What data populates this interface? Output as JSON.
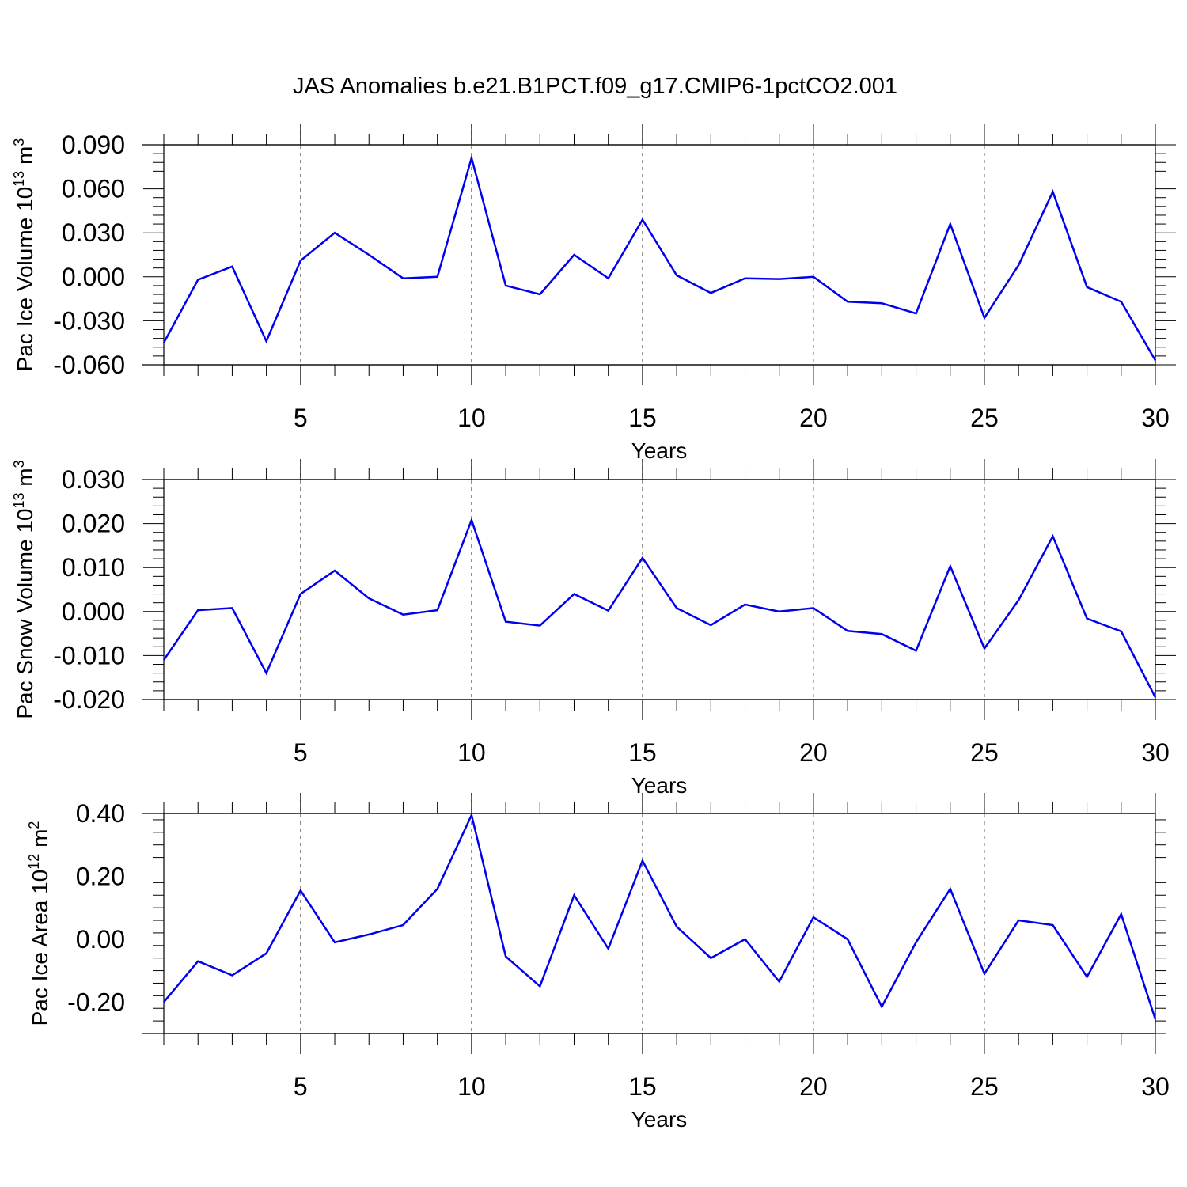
{
  "figure_title": "JAS Anomalies b.e21.B1PCT.f09_g17.CMIP6-1pctCO2.001",
  "colors": {
    "line": "#0000ee",
    "axis": "#000000",
    "grid": "#555555"
  },
  "chart_data": [
    {
      "type": "line",
      "title": "JAS Anomalies b.e21.B1PCT.f09_g17.CMIP6-1pctCO2.001",
      "xlabel": "Years",
      "ylabel": {
        "text": "Pac Ice Volume 10",
        "exponent": "13",
        "unit": "m",
        "unit_exponent": "3"
      },
      "xlim": [
        1,
        30
      ],
      "ylim": [
        -0.06,
        0.09
      ],
      "xticks": [
        5,
        10,
        15,
        20,
        25,
        30
      ],
      "xtick_labels": [
        "5",
        "10",
        "15",
        "20",
        "25",
        "30"
      ],
      "yticks": [
        0.09,
        0.06,
        0.03,
        0.0,
        -0.03,
        -0.06
      ],
      "ytick_labels": [
        "0.090",
        "0.060",
        "0.030",
        "0.000",
        "-0.030",
        "-0.060"
      ],
      "grid_x": [
        5,
        10,
        15,
        20,
        25
      ],
      "x": [
        1,
        2,
        3,
        4,
        5,
        6,
        7,
        8,
        9,
        10,
        11,
        12,
        13,
        14,
        15,
        16,
        17,
        18,
        19,
        20,
        21,
        22,
        23,
        24,
        25,
        26,
        27,
        28,
        29,
        30
      ],
      "series": [
        {
          "name": "Pac Ice Volume",
          "values": [
            -0.045,
            -0.002,
            0.007,
            -0.044,
            0.011,
            0.03,
            0.015,
            -0.001,
            0.0,
            0.081,
            -0.006,
            -0.012,
            0.015,
            -0.001,
            0.039,
            0.001,
            -0.011,
            -0.001,
            -0.0015,
            0.0,
            -0.017,
            -0.018,
            -0.025,
            0.036,
            -0.028,
            0.008,
            0.058,
            -0.007,
            -0.017,
            -0.057
          ]
        }
      ]
    },
    {
      "type": "line",
      "xlabel": "Years",
      "ylabel": {
        "text": "Pac Snow Volume 10",
        "exponent": "13",
        "unit": "m",
        "unit_exponent": "3"
      },
      "xlim": [
        1,
        30
      ],
      "ylim": [
        -0.02,
        0.03
      ],
      "xticks": [
        5,
        10,
        15,
        20,
        25,
        30
      ],
      "xtick_labels": [
        "5",
        "10",
        "15",
        "20",
        "25",
        "30"
      ],
      "yticks": [
        0.03,
        0.02,
        0.01,
        0.0,
        -0.01,
        -0.02
      ],
      "ytick_labels": [
        "0.030",
        "0.020",
        "0.010",
        "0.000",
        "-0.010",
        "-0.020"
      ],
      "grid_x": [
        5,
        10,
        15,
        20,
        25
      ],
      "x": [
        1,
        2,
        3,
        4,
        5,
        6,
        7,
        8,
        9,
        10,
        11,
        12,
        13,
        14,
        15,
        16,
        17,
        18,
        19,
        20,
        21,
        22,
        23,
        24,
        25,
        26,
        27,
        28,
        29,
        30
      ],
      "series": [
        {
          "name": "Pac Snow Volume",
          "values": [
            -0.011,
            0.0003,
            0.0008,
            -0.014,
            0.004,
            0.0093,
            0.003,
            -0.0007,
            0.0003,
            0.0208,
            -0.0023,
            -0.0032,
            0.004,
            0.0002,
            0.0122,
            0.0008,
            -0.0031,
            0.0016,
            0.0,
            0.0008,
            -0.0044,
            -0.0051,
            -0.0089,
            0.0103,
            -0.0084,
            0.0026,
            0.0171,
            -0.0016,
            -0.0045,
            -0.0195
          ]
        }
      ]
    },
    {
      "type": "line",
      "xlabel": "Years",
      "ylabel": {
        "text": "Pac Ice Area 10",
        "exponent": "12",
        "unit": "m",
        "unit_exponent": "2"
      },
      "xlim": [
        1,
        30
      ],
      "ylim": [
        -0.3,
        0.4
      ],
      "xticks": [
        5,
        10,
        15,
        20,
        25,
        30
      ],
      "xtick_labels": [
        "5",
        "10",
        "15",
        "20",
        "25",
        "30"
      ],
      "yticks": [
        0.4,
        0.2,
        0.0,
        -0.2
      ],
      "ytick_labels": [
        "0.40",
        "0.20",
        "0.00",
        "-0.20"
      ],
      "grid_x": [
        5,
        10,
        15,
        20,
        25
      ],
      "x": [
        1,
        2,
        3,
        4,
        5,
        6,
        7,
        8,
        9,
        10,
        11,
        12,
        13,
        14,
        15,
        16,
        17,
        18,
        19,
        20,
        21,
        22,
        23,
        24,
        25,
        26,
        27,
        28,
        29,
        30
      ],
      "series": [
        {
          "name": "Pac Ice Area",
          "values": [
            -0.2,
            -0.07,
            -0.115,
            -0.045,
            0.155,
            -0.01,
            0.015,
            0.045,
            0.16,
            0.395,
            -0.055,
            -0.15,
            0.14,
            -0.03,
            0.25,
            0.04,
            -0.06,
            0.0,
            -0.135,
            0.07,
            0.0,
            -0.215,
            -0.01,
            0.16,
            -0.11,
            0.06,
            0.045,
            -0.12,
            0.08,
            -0.255
          ]
        }
      ]
    }
  ]
}
